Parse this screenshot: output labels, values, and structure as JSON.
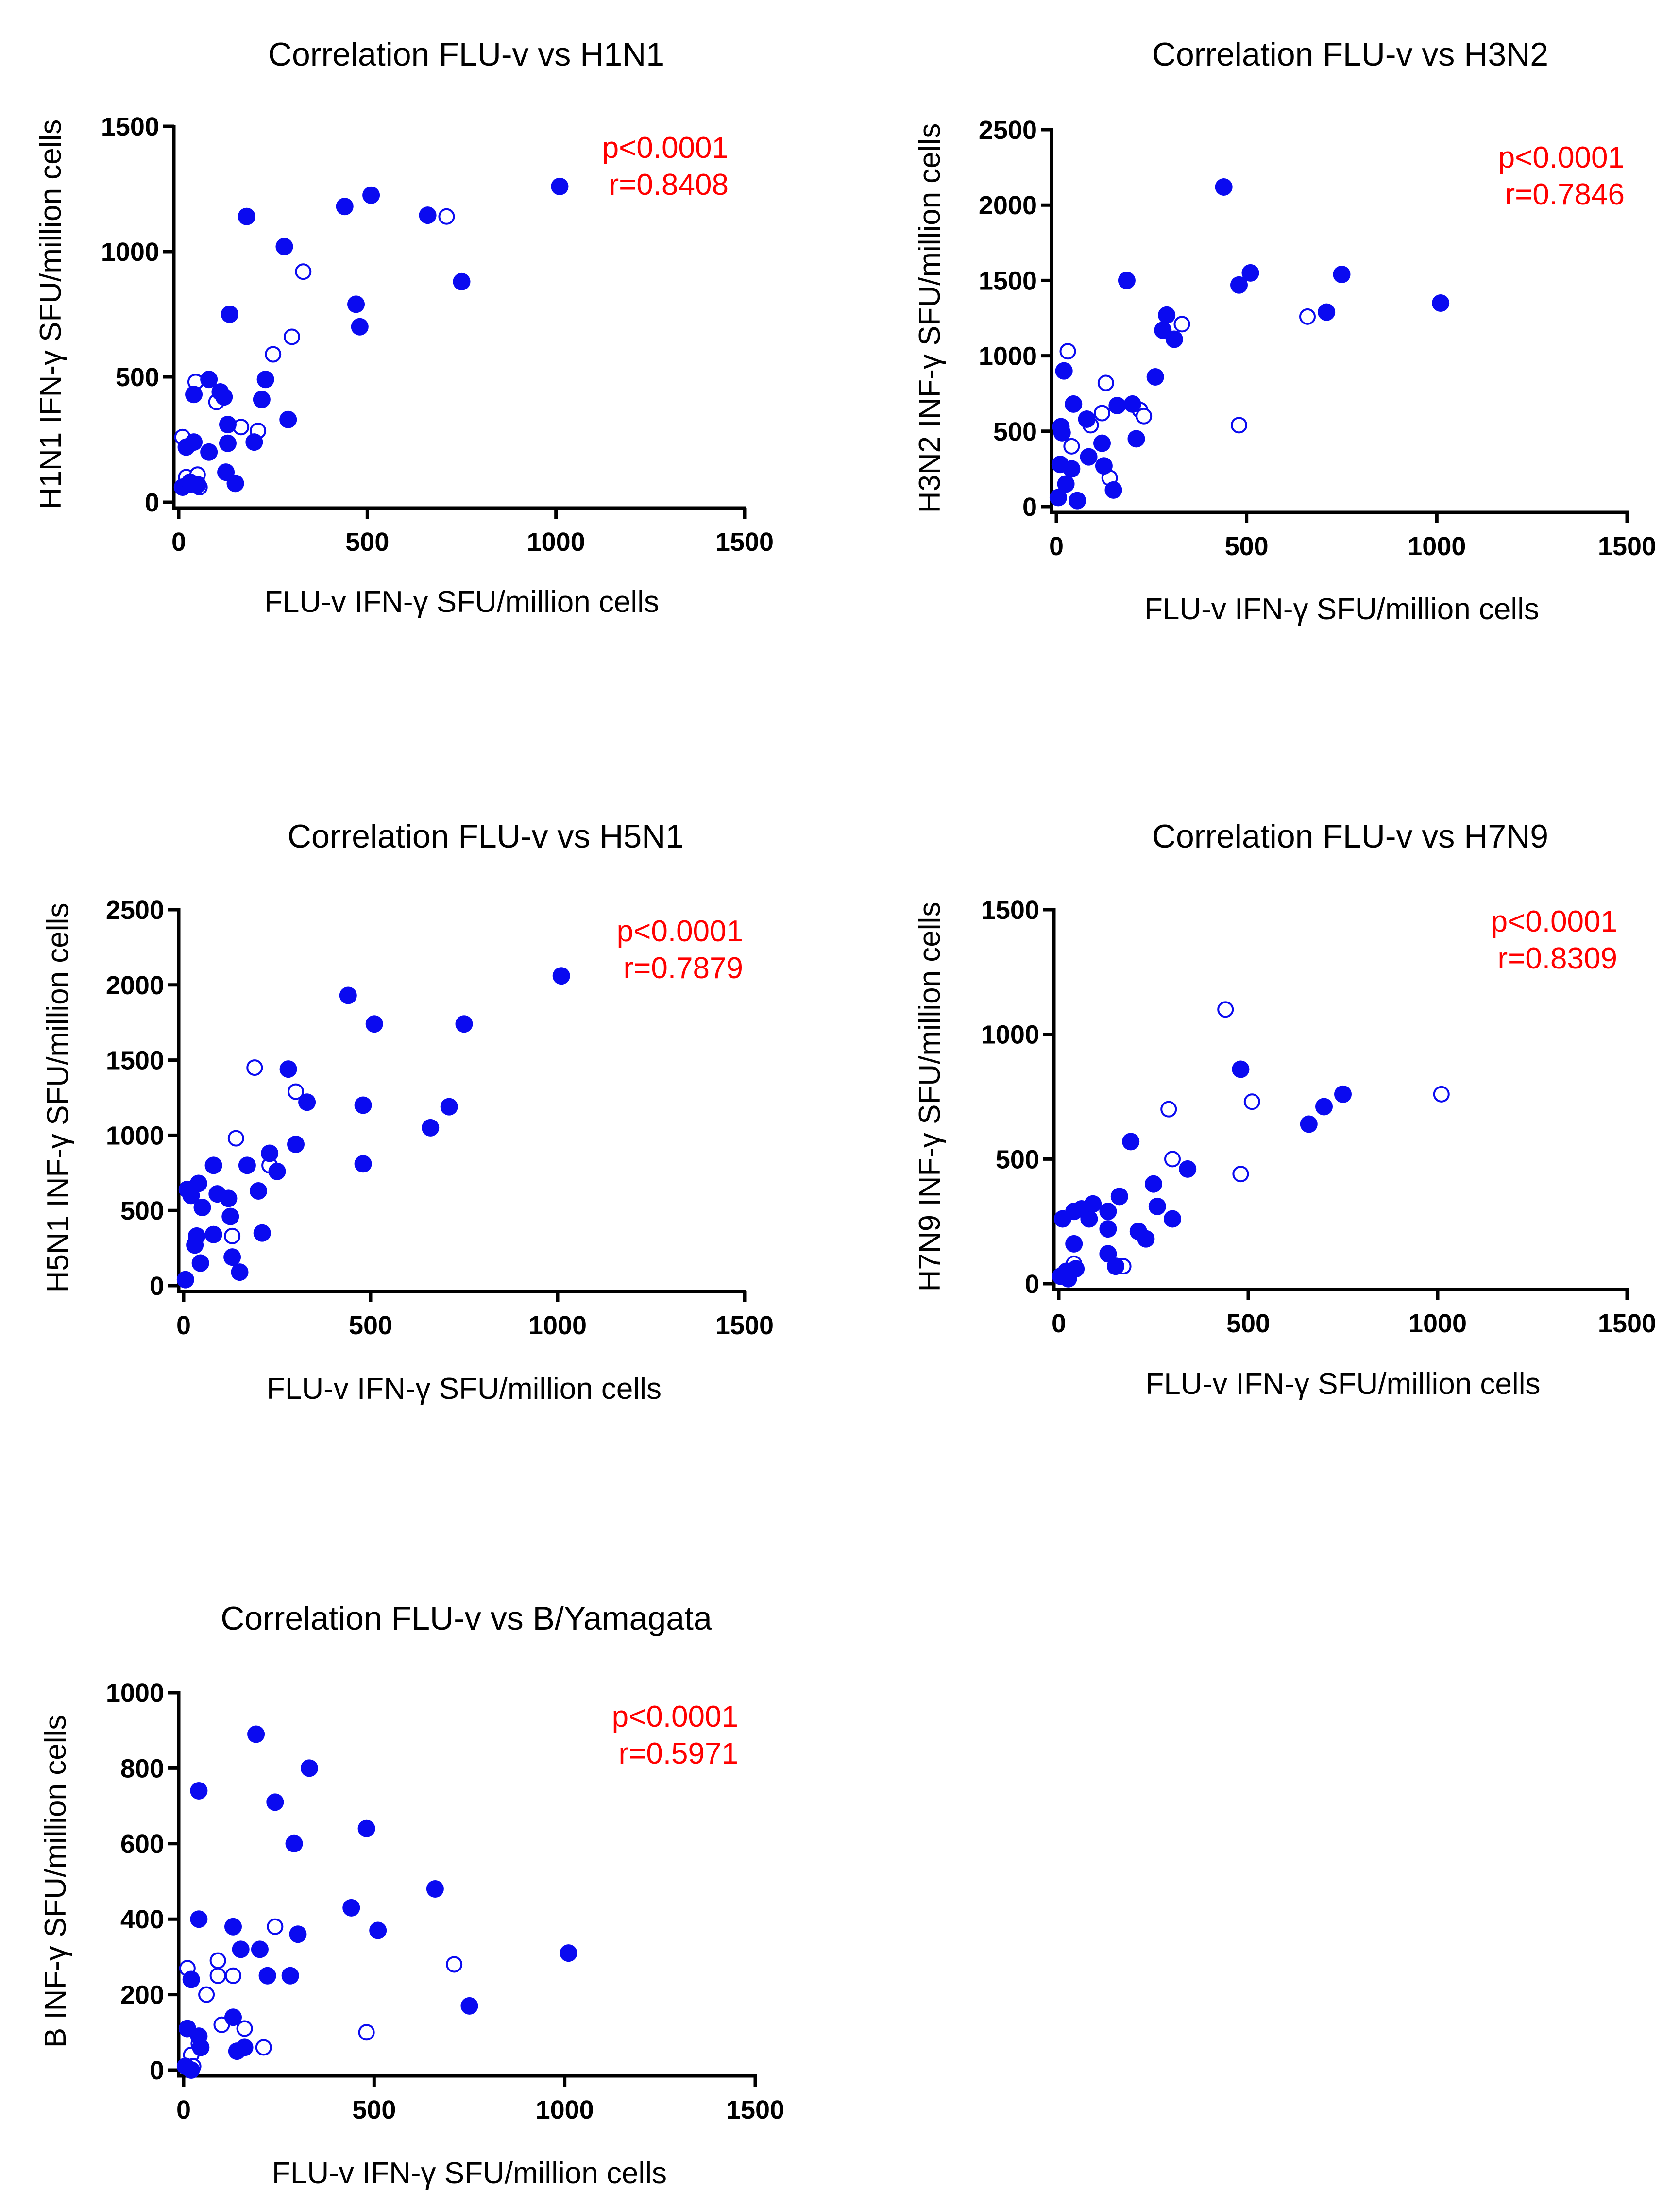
{
  "colors": {
    "points": "#0a0af0",
    "stats": "#ff0000",
    "axes": "#000000"
  },
  "chart_data": [
    {
      "type": "scatter",
      "title": "Correlation FLU-v vs H1N1",
      "xlabel": "FLU-v IFN-γ SFU/million cells",
      "ylabel": "H1N1 IFN-γ SFU/million cells",
      "xlim": [
        0,
        1500
      ],
      "ylim": [
        0,
        1500
      ],
      "xticks": [
        0,
        500,
        1000,
        1500
      ],
      "yticks": [
        0,
        500,
        1000,
        1500
      ],
      "stat_p": "p<0.0001",
      "stat_r": "r=0.8408",
      "filled": [
        [
          10,
          60
        ],
        [
          20,
          220
        ],
        [
          30,
          80
        ],
        [
          40,
          430
        ],
        [
          40,
          240
        ],
        [
          50,
          70
        ],
        [
          80,
          490
        ],
        [
          80,
          200
        ],
        [
          110,
          440
        ],
        [
          120,
          420
        ],
        [
          125,
          120
        ],
        [
          130,
          310
        ],
        [
          130,
          235
        ],
        [
          135,
          750
        ],
        [
          150,
          75
        ],
        [
          180,
          1140
        ],
        [
          200,
          240
        ],
        [
          220,
          410
        ],
        [
          230,
          490
        ],
        [
          280,
          1020
        ],
        [
          290,
          330
        ],
        [
          440,
          1180
        ],
        [
          470,
          790
        ],
        [
          480,
          700
        ],
        [
          510,
          1225
        ],
        [
          660,
          1145
        ],
        [
          750,
          880
        ],
        [
          1010,
          1260
        ]
      ],
      "open": [
        [
          10,
          260
        ],
        [
          20,
          100
        ],
        [
          30,
          70
        ],
        [
          45,
          480
        ],
        [
          50,
          110
        ],
        [
          55,
          60
        ],
        [
          100,
          400
        ],
        [
          165,
          300
        ],
        [
          210,
          285
        ],
        [
          250,
          590
        ],
        [
          300,
          660
        ],
        [
          330,
          920
        ],
        [
          710,
          1140
        ]
      ]
    },
    {
      "type": "scatter",
      "title": "Correlation FLU-v vs H3N2",
      "xlabel": "FLU-v IFN-γ SFU/million cells",
      "ylabel": "H3N2 INF-γ SFU/million cells",
      "xlim": [
        0,
        1500
      ],
      "ylim": [
        0,
        2500
      ],
      "xticks": [
        0,
        500,
        1000,
        1500
      ],
      "yticks": [
        0,
        500,
        1000,
        1500,
        2000,
        2500
      ],
      "stat_p": "p<0.0001",
      "stat_r": "r=0.7846",
      "filled": [
        [
          5,
          60
        ],
        [
          10,
          280
        ],
        [
          12,
          530
        ],
        [
          15,
          490
        ],
        [
          20,
          900
        ],
        [
          25,
          150
        ],
        [
          40,
          250
        ],
        [
          45,
          680
        ],
        [
          55,
          40
        ],
        [
          80,
          580
        ],
        [
          85,
          330
        ],
        [
          120,
          420
        ],
        [
          125,
          270
        ],
        [
          150,
          110
        ],
        [
          160,
          670
        ],
        [
          185,
          1500
        ],
        [
          200,
          680
        ],
        [
          210,
          450
        ],
        [
          260,
          860
        ],
        [
          280,
          1170
        ],
        [
          290,
          1270
        ],
        [
          310,
          1110
        ],
        [
          440,
          2120
        ],
        [
          480,
          1470
        ],
        [
          510,
          1550
        ],
        [
          710,
          1290
        ],
        [
          750,
          1540
        ],
        [
          1010,
          1350
        ]
      ],
      "open": [
        [
          30,
          1030
        ],
        [
          40,
          400
        ],
        [
          90,
          540
        ],
        [
          120,
          620
        ],
        [
          130,
          820
        ],
        [
          140,
          190
        ],
        [
          220,
          640
        ],
        [
          230,
          600
        ],
        [
          330,
          1210
        ],
        [
          480,
          540
        ],
        [
          660,
          1260
        ]
      ]
    },
    {
      "type": "scatter",
      "title": "Correlation FLU-v vs H5N1",
      "xlabel": "FLU-v IFN-γ SFU/million cells",
      "ylabel": "H5N1 INF-γ SFU/million cells",
      "xlim": [
        0,
        1500
      ],
      "ylim": [
        0,
        2500
      ],
      "xticks": [
        0,
        500,
        1000,
        1500
      ],
      "yticks": [
        0,
        500,
        1000,
        1500,
        2000,
        2500
      ],
      "stat_p": "p<0.0001",
      "stat_r": "r=0.7879",
      "filled": [
        [
          5,
          40
        ],
        [
          10,
          640
        ],
        [
          20,
          600
        ],
        [
          30,
          270
        ],
        [
          35,
          330
        ],
        [
          40,
          680
        ],
        [
          45,
          150
        ],
        [
          50,
          520
        ],
        [
          80,
          340
        ],
        [
          80,
          800
        ],
        [
          90,
          610
        ],
        [
          120,
          580
        ],
        [
          125,
          460
        ],
        [
          130,
          190
        ],
        [
          150,
          90
        ],
        [
          170,
          800
        ],
        [
          200,
          630
        ],
        [
          210,
          350
        ],
        [
          230,
          880
        ],
        [
          250,
          760
        ],
        [
          280,
          1440
        ],
        [
          300,
          940
        ],
        [
          330,
          1220
        ],
        [
          440,
          1930
        ],
        [
          480,
          1200
        ],
        [
          480,
          810
        ],
        [
          510,
          1740
        ],
        [
          660,
          1050
        ],
        [
          710,
          1190
        ],
        [
          750,
          1740
        ],
        [
          1010,
          2060
        ]
      ],
      "open": [
        [
          130,
          330
        ],
        [
          140,
          980
        ],
        [
          190,
          1450
        ],
        [
          300,
          1290
        ],
        [
          230,
          800
        ]
      ]
    },
    {
      "type": "scatter",
      "title": "Correlation FLU-v vs H7N9",
      "xlabel": "FLU-v IFN-γ SFU/million cells",
      "ylabel": "H7N9 INF-γ SFU/million cells",
      "xlim": [
        0,
        1500
      ],
      "ylim": [
        0,
        1500
      ],
      "xticks": [
        0,
        500,
        1000,
        1500
      ],
      "yticks": [
        0,
        500,
        1000,
        1500
      ],
      "stat_p": "p<0.0001",
      "stat_r": "r=0.8309",
      "filled": [
        [
          5,
          30
        ],
        [
          10,
          260
        ],
        [
          20,
          50
        ],
        [
          25,
          20
        ],
        [
          40,
          160
        ],
        [
          40,
          290
        ],
        [
          45,
          60
        ],
        [
          60,
          300
        ],
        [
          80,
          260
        ],
        [
          90,
          320
        ],
        [
          130,
          290
        ],
        [
          130,
          120
        ],
        [
          130,
          220
        ],
        [
          150,
          70
        ],
        [
          160,
          350
        ],
        [
          190,
          570
        ],
        [
          210,
          210
        ],
        [
          230,
          180
        ],
        [
          250,
          400
        ],
        [
          260,
          310
        ],
        [
          300,
          260
        ],
        [
          340,
          460
        ],
        [
          480,
          860
        ],
        [
          660,
          640
        ],
        [
          700,
          710
        ],
        [
          750,
          760
        ]
      ],
      "open": [
        [
          40,
          80
        ],
        [
          170,
          70
        ],
        [
          290,
          700
        ],
        [
          300,
          500
        ],
        [
          440,
          1100
        ],
        [
          480,
          440
        ],
        [
          510,
          730
        ],
        [
          1010,
          760
        ]
      ]
    },
    {
      "type": "scatter",
      "title": "Correlation FLU-v vs B/Yamagata",
      "xlabel": "FLU-v IFN-γ SFU/million cells",
      "ylabel": "B INF-γ SFU/million cells",
      "xlim": [
        0,
        1500
      ],
      "ylim": [
        0,
        1000
      ],
      "xticks": [
        0,
        500,
        1000,
        1500
      ],
      "yticks": [
        0,
        200,
        400,
        600,
        800,
        1000
      ],
      "stat_p": "p<0.0001",
      "stat_r": "r=0.5971",
      "filled": [
        [
          5,
          10
        ],
        [
          10,
          110
        ],
        [
          20,
          240
        ],
        [
          20,
          0
        ],
        [
          40,
          740
        ],
        [
          40,
          400
        ],
        [
          40,
          90
        ],
        [
          45,
          60
        ],
        [
          130,
          380
        ],
        [
          130,
          140
        ],
        [
          140,
          50
        ],
        [
          150,
          320
        ],
        [
          160,
          60
        ],
        [
          190,
          890
        ],
        [
          200,
          320
        ],
        [
          220,
          250
        ],
        [
          240,
          710
        ],
        [
          280,
          250
        ],
        [
          290,
          600
        ],
        [
          300,
          360
        ],
        [
          330,
          800
        ],
        [
          440,
          430
        ],
        [
          480,
          640
        ],
        [
          510,
          370
        ],
        [
          660,
          480
        ],
        [
          750,
          170
        ],
        [
          1010,
          310
        ]
      ],
      "open": [
        [
          10,
          270
        ],
        [
          20,
          40
        ],
        [
          25,
          10
        ],
        [
          40,
          70
        ],
        [
          60,
          200
        ],
        [
          90,
          250
        ],
        [
          90,
          290
        ],
        [
          130,
          250
        ],
        [
          160,
          110
        ],
        [
          210,
          60
        ],
        [
          240,
          380
        ],
        [
          480,
          100
        ],
        [
          710,
          280
        ],
        [
          100,
          120
        ]
      ]
    }
  ]
}
